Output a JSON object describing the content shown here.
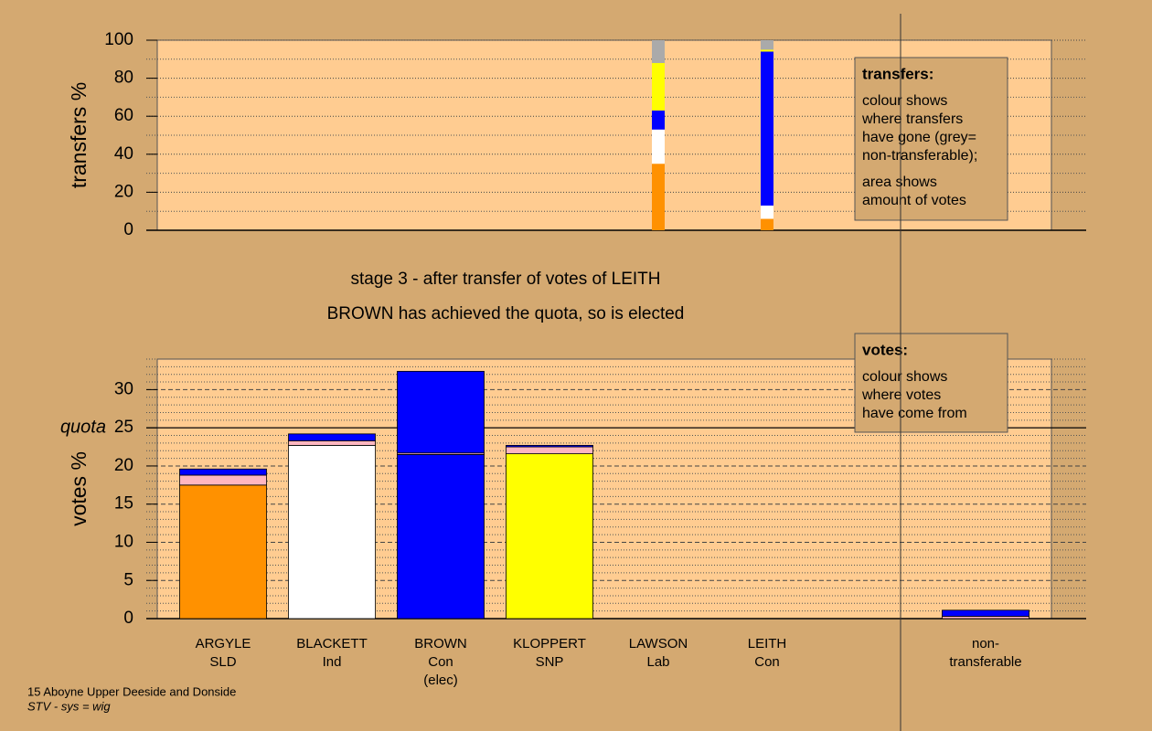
{
  "chart_data": [
    {
      "type": "bar",
      "stacked": true,
      "ylabel": "transfers %",
      "ylim": [
        0,
        100
      ],
      "yticks": [
        0,
        20,
        40,
        60,
        80,
        100
      ],
      "minor_yticks": [
        10,
        30,
        50,
        70,
        90
      ],
      "grid": true,
      "series": [
        {
          "color": "#ff9100",
          "values": [
            null,
            null,
            null,
            null,
            35,
            6,
            null
          ]
        },
        {
          "color": "#ffffff",
          "values": [
            null,
            null,
            null,
            null,
            18,
            7,
            null
          ]
        },
        {
          "color": "#0000ff",
          "values": [
            null,
            null,
            null,
            null,
            10,
            81,
            null
          ]
        },
        {
          "color": "#ffff00",
          "values": [
            null,
            null,
            null,
            null,
            25,
            1,
            null
          ]
        },
        {
          "color": "#aaaaaa",
          "values": [
            null,
            null,
            null,
            null,
            12,
            5,
            null
          ]
        }
      ],
      "note": {
        "heading": "transfers:",
        "paragraphs": [
          [
            "colour shows",
            "where transfers",
            "have gone (grey=",
            "non-transferable);"
          ],
          [
            "area shows",
            "amount of votes"
          ]
        ]
      }
    },
    {
      "type": "bar",
      "stacked": true,
      "ylabel": "votes %",
      "categories": [
        [
          "ARGYLE",
          "SLD"
        ],
        [
          "BLACKETT",
          "Ind"
        ],
        [
          "BROWN",
          "Con",
          "(elec)"
        ],
        [
          "KLOPPERT",
          "SNP"
        ],
        [
          "LAWSON",
          "Lab"
        ],
        [
          "LEITH",
          "Con"
        ],
        [
          "non-",
          "transferable"
        ]
      ],
      "ylim": [
        0,
        34
      ],
      "yticks": [
        0,
        5,
        10,
        15,
        20,
        25,
        30
      ],
      "minor_yticks": [
        1,
        2,
        3,
        4,
        6,
        7,
        8,
        9,
        11,
        12,
        13,
        14,
        16,
        17,
        18,
        19,
        21,
        22,
        23,
        24,
        26,
        27,
        28,
        29,
        31,
        32,
        33,
        34
      ],
      "grid": true,
      "quota": 25,
      "quota_label": "quota",
      "series": [
        {
          "color": "#ff9100",
          "values": [
            17.5,
            null,
            null,
            null,
            null,
            null,
            null
          ]
        },
        {
          "color": "#ffffff",
          "values": [
            null,
            22.7,
            null,
            null,
            null,
            null,
            null
          ]
        },
        {
          "color": "#0000ff",
          "values": [
            null,
            null,
            21.5,
            null,
            null,
            null,
            null
          ]
        },
        {
          "color": "#ffff00",
          "values": [
            null,
            null,
            null,
            21.6,
            null,
            null,
            null
          ]
        },
        {
          "color": "#ffb6c1",
          "values": [
            1.3,
            0.6,
            0.2,
            0.9,
            null,
            null,
            0.3
          ]
        },
        {
          "color": "#0000ff",
          "values": [
            0.8,
            0.9,
            10.7,
            0.2,
            null,
            null,
            0.8
          ]
        }
      ],
      "note": {
        "heading": "votes:",
        "paragraphs": [
          [
            "colour shows",
            "where votes",
            "have come from"
          ]
        ]
      }
    }
  ],
  "stage_lines": [
    "stage 3 - after transfer of votes of LEITH",
    "BROWN has achieved the quota, so is elected"
  ],
  "footer": [
    "15 Aboyne Upper Deeside and Donside",
    "STV - sys = wig"
  ]
}
